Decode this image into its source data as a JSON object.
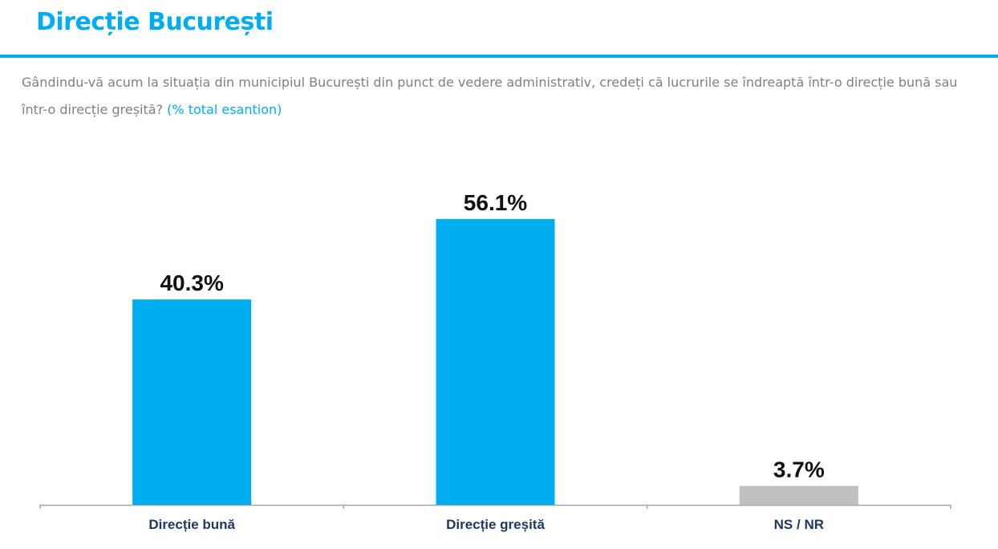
{
  "header": {
    "title": "Direcție București"
  },
  "question": {
    "text": "Gândindu-vă acum la situația din municipiul București din punct de vedere administrativ, credeți că lucrurile se îndreaptă într-o direcție bună sau într-o direcție greșită?",
    "note": "(% total esantion)"
  },
  "chart_data": {
    "type": "bar",
    "categories": [
      "Direcție bună",
      "Direcție greșită",
      "NS / NR"
    ],
    "values": [
      40.3,
      56.1,
      3.7
    ],
    "value_labels": [
      "40.3%",
      "56.1%",
      "3.7%"
    ],
    "colors": [
      "#00adef",
      "#00adef",
      "#bfbfbf"
    ],
    "ylim": [
      0,
      63
    ],
    "grid": false
  }
}
